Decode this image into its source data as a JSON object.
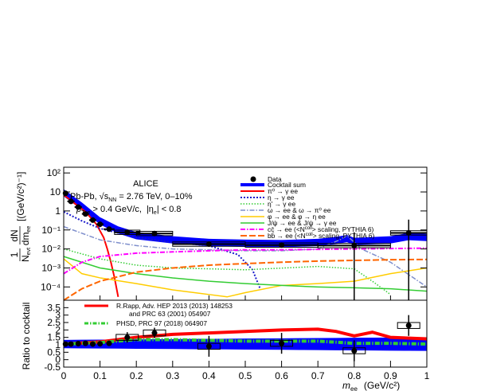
{
  "chart_data": [
    {
      "type": "line",
      "x_range": [
        0,
        1
      ],
      "y_scale": "log",
      "ylim": [
        2e-05,
        200
      ],
      "y_ticks": [
        {
          "v": 100,
          "label": "10²"
        },
        {
          "v": 10,
          "label": "10"
        },
        {
          "v": 1,
          "label": "1"
        },
        {
          "v": 0.1,
          "label": "10⁻¹"
        },
        {
          "v": 0.01,
          "label": "10⁻²"
        },
        {
          "v": 0.001,
          "label": "10⁻³"
        },
        {
          "v": 0.0001,
          "label": "10⁻⁴"
        }
      ],
      "ylabel": {
        "fraction_num": "1",
        "fraction_den": "N",
        "den_sub": "evt",
        "deriv_num": "dN",
        "deriv_den": "dm",
        "deriv_den_sub": "ee",
        "unit": "[(GeV/c²)⁻¹]"
      },
      "header": {
        "experiment": "ALICE",
        "system": "Pb-Pb, √s",
        "system_sub": "NN",
        "system_rest": " = 2.76 TeV, 0–10%",
        "cut1": "p",
        "cut1_sub": "T, e",
        "cut1_rest": " > 0.4 GeV/c,",
        "cut2": "|η",
        "cut2_sub": "e",
        "cut2_rest": "| < 0.8"
      },
      "legend": {
        "data": "Data",
        "sum": "Cocktail sum",
        "pi0": "π⁰ → γ ee",
        "eta": "η → γ ee",
        "etap": "η' → γ ee",
        "omega": "ω → ee  &  ω → π⁰ ee",
        "phi": "φ → ee  &  φ → η ee",
        "jpsi": "J/ψ → ee  &  J/ψ → γ ee",
        "ccbar": "cc̄ → ee (<N",
        "ccbar_sup": "coll",
        "ccbar_rest": "> scaling, PYTHIA 6)",
        "bbbar": "bb̄ → ee (<N",
        "bbbar_sup": "coll",
        "bbbar_rest": "> scaling, PYTHIA 6)"
      },
      "colors": {
        "sum": "#0000ff",
        "pi0": "#ff0000",
        "eta": "#1a1acc",
        "etap": "#33cc33",
        "omega": "#7f8fcc",
        "phi": "#ffcc00",
        "jpsi": "#33cc33",
        "ccbar": "#ff00ff",
        "bbbar": "#ff6600"
      },
      "data_points": [
        {
          "x": 0.005,
          "y": 8.5,
          "ex": 0.005
        },
        {
          "x": 0.02,
          "y": 3.2,
          "ex": 0.01
        },
        {
          "x": 0.04,
          "y": 1.6,
          "ex": 0.01
        },
        {
          "x": 0.06,
          "y": 0.7,
          "ex": 0.01
        },
        {
          "x": 0.08,
          "y": 0.33,
          "ex": 0.01
        },
        {
          "x": 0.1,
          "y": 0.2,
          "ex": 0.01
        },
        {
          "x": 0.125,
          "y": 0.11,
          "ex": 0.015
        },
        {
          "x": 0.175,
          "y": 0.075,
          "ex": 0.035
        },
        {
          "x": 0.25,
          "y": 0.065,
          "ex": 0.05
        },
        {
          "x": 0.4,
          "y": 0.018,
          "ex": 0.1
        },
        {
          "x": 0.6,
          "y": 0.016,
          "ex": 0.1
        },
        {
          "x": 0.8,
          "y": 0.015,
          "ex": 0.1
        },
        {
          "x": 0.95,
          "y": 0.07,
          "ex": 0.05
        }
      ],
      "cocktail_band_center": [
        [
          0,
          9
        ],
        [
          0.05,
          1.8
        ],
        [
          0.1,
          0.3
        ],
        [
          0.15,
          0.1
        ],
        [
          0.2,
          0.05
        ],
        [
          0.3,
          0.03
        ],
        [
          0.4,
          0.022
        ],
        [
          0.5,
          0.02
        ],
        [
          0.6,
          0.019
        ],
        [
          0.7,
          0.022
        ],
        [
          0.75,
          0.028
        ],
        [
          0.78,
          0.035
        ],
        [
          0.8,
          0.025
        ],
        [
          0.9,
          0.03
        ],
        [
          0.95,
          0.045
        ],
        [
          1,
          0.04
        ]
      ],
      "series": [
        {
          "key": "pi0",
          "points": [
            [
              0.0,
              7.0
            ],
            [
              0.03,
              2.5
            ],
            [
              0.06,
              0.9
            ],
            [
              0.09,
              0.2
            ],
            [
              0.11,
              0.04
            ],
            [
              0.12,
              0.01
            ],
            [
              0.13,
              0.002
            ],
            [
              0.14,
              0.0003
            ],
            [
              0.15,
              3e-05
            ]
          ]
        },
        {
          "key": "eta",
          "points": [
            [
              0.0,
              0.9
            ],
            [
              0.05,
              0.3
            ],
            [
              0.1,
              0.12
            ],
            [
              0.2,
              0.04
            ],
            [
              0.3,
              0.022
            ],
            [
              0.4,
              0.015
            ],
            [
              0.48,
              0.005
            ],
            [
              0.52,
              0.0008
            ],
            [
              0.54,
              9e-05
            ]
          ]
        },
        {
          "key": "etap",
          "points": [
            [
              0.0,
              0.01
            ],
            [
              0.1,
              0.003
            ],
            [
              0.2,
              0.0014
            ],
            [
              0.3,
              0.001
            ],
            [
              0.4,
              0.0009
            ],
            [
              0.5,
              0.0008
            ],
            [
              0.7,
              0.0012
            ],
            [
              0.8,
              0.0009
            ],
            [
              0.85,
              0.0002
            ],
            [
              0.9,
              4e-05
            ]
          ]
        },
        {
          "key": "omega",
          "points": [
            [
              0.0,
              0.15
            ],
            [
              0.1,
              0.03
            ],
            [
              0.2,
              0.015
            ],
            [
              0.3,
              0.01
            ],
            [
              0.4,
              0.009
            ],
            [
              0.5,
              0.008
            ],
            [
              0.6,
              0.008
            ],
            [
              0.7,
              0.01
            ],
            [
              0.76,
              0.03
            ],
            [
              0.78,
              0.05
            ],
            [
              0.82,
              0.01
            ],
            [
              0.9,
              0.002
            ],
            [
              1.0,
              0.0001
            ]
          ]
        },
        {
          "key": "phi",
          "points": [
            [
              0.0,
              0.003
            ],
            [
              0.05,
              0.0005
            ],
            [
              0.1,
              0.0003
            ],
            [
              0.2,
              0.00015
            ],
            [
              0.3,
              7e-05
            ],
            [
              0.4,
              4e-05
            ],
            [
              0.45,
              3e-05
            ],
            [
              0.5,
              5e-05
            ],
            [
              0.6,
              0.00012
            ],
            [
              0.7,
              0.00015
            ],
            [
              0.8,
              0.0002
            ],
            [
              0.9,
              0.0005
            ],
            [
              1.0,
              0.001
            ]
          ]
        },
        {
          "key": "jpsi",
          "points": [
            [
              0.0,
              0.004
            ],
            [
              0.1,
              0.001
            ],
            [
              0.2,
              0.0005
            ],
            [
              0.3,
              0.0003
            ],
            [
              0.4,
              0.0002
            ],
            [
              0.5,
              0.00015
            ],
            [
              0.6,
              0.00012
            ],
            [
              0.7,
              0.0001
            ],
            [
              0.8,
              9e-05
            ],
            [
              0.9,
              8e-05
            ],
            [
              1.0,
              6e-05
            ]
          ]
        },
        {
          "key": "ccbar",
          "points": [
            [
              0.0,
              0.0005
            ],
            [
              0.05,
              0.002
            ],
            [
              0.1,
              0.004
            ],
            [
              0.2,
              0.006
            ],
            [
              0.3,
              0.007
            ],
            [
              0.4,
              0.008
            ],
            [
              0.5,
              0.009
            ],
            [
              0.6,
              0.009
            ],
            [
              0.7,
              0.0095
            ],
            [
              0.8,
              0.01
            ],
            [
              0.9,
              0.0105
            ],
            [
              1.0,
              0.011
            ]
          ]
        },
        {
          "key": "bbbar",
          "points": [
            [
              0.0,
              1e-05
            ],
            [
              0.05,
              8e-05
            ],
            [
              0.1,
              0.0002
            ],
            [
              0.2,
              0.0006
            ],
            [
              0.3,
              0.001
            ],
            [
              0.4,
              0.0014
            ],
            [
              0.5,
              0.0017
            ],
            [
              0.6,
              0.002
            ],
            [
              0.7,
              0.0023
            ],
            [
              0.8,
              0.0025
            ],
            [
              0.9,
              0.0027
            ],
            [
              1.0,
              0.0028
            ]
          ]
        }
      ]
    },
    {
      "type": "line",
      "x_range": [
        0,
        1
      ],
      "xlabel": "m",
      "xlabel_sub": "ee",
      "xlabel_unit": "(GeV/c²)",
      "x_ticks": [
        "0",
        "0.1",
        "0.2",
        "0.3",
        "0.4",
        "0.5",
        "0.6",
        "0.7",
        "0.8",
        "0.9",
        "1"
      ],
      "ylim": [
        -0.5,
        4
      ],
      "y_ticks": [
        "3.5",
        "3",
        "2.5",
        "2",
        "1.5",
        "1",
        "0.5",
        "0",
        "-0.5"
      ],
      "ylabel": "Ratio to cocktail",
      "legend": {
        "rapp": "R.Rapp, Adv. HEP 2013 (2013) 148253",
        "rapp2": "and PRC 63 (2001) 054907",
        "phsd": "PHSD, PRC 97 (2018) 064907"
      },
      "colors": {
        "rapp": "#ff0000",
        "phsd": "#33cc33"
      },
      "ratio_points": [
        {
          "x": 0.005,
          "y": 1.05
        },
        {
          "x": 0.02,
          "y": 1.05
        },
        {
          "x": 0.04,
          "y": 1.08
        },
        {
          "x": 0.06,
          "y": 1.1
        },
        {
          "x": 0.08,
          "y": 1.05
        },
        {
          "x": 0.1,
          "y": 1.07
        },
        {
          "x": 0.125,
          "y": 1.1
        },
        {
          "x": 0.175,
          "y": 1.5
        },
        {
          "x": 0.25,
          "y": 1.8
        },
        {
          "x": 0.4,
          "y": 0.9
        },
        {
          "x": 0.6,
          "y": 1.1
        },
        {
          "x": 0.8,
          "y": 0.6
        },
        {
          "x": 0.95,
          "y": 2.3
        }
      ],
      "rapp_curve": [
        [
          0,
          1.05
        ],
        [
          0.1,
          1.2
        ],
        [
          0.2,
          1.5
        ],
        [
          0.3,
          1.7
        ],
        [
          0.4,
          1.8
        ],
        [
          0.5,
          1.9
        ],
        [
          0.6,
          2.0
        ],
        [
          0.7,
          2.05
        ],
        [
          0.75,
          1.9
        ],
        [
          0.8,
          1.6
        ],
        [
          0.85,
          1.85
        ],
        [
          0.9,
          1.5
        ],
        [
          1.0,
          1.4
        ]
      ],
      "phsd_curve": [
        [
          0,
          1.05
        ],
        [
          0.1,
          1.15
        ],
        [
          0.2,
          1.35
        ],
        [
          0.3,
          1.35
        ],
        [
          0.4,
          1.3
        ],
        [
          0.5,
          1.25
        ],
        [
          0.6,
          1.25
        ],
        [
          0.7,
          1.25
        ],
        [
          0.8,
          1.1
        ],
        [
          0.9,
          1.1
        ],
        [
          1.0,
          1.05
        ]
      ]
    }
  ]
}
